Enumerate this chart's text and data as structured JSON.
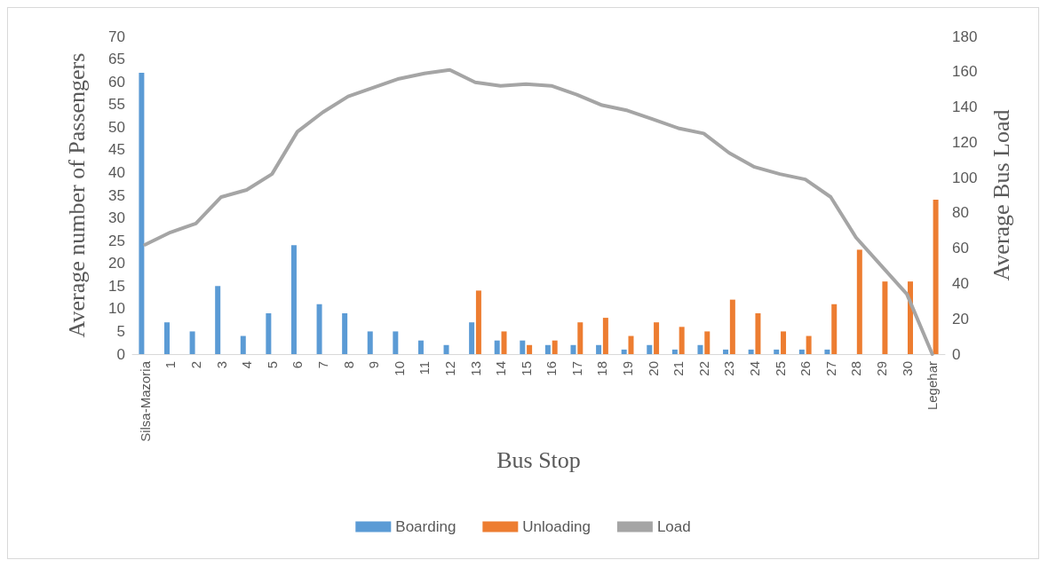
{
  "chart_data": {
    "type": "bar",
    "xlabel": "Bus Stop",
    "ylabel": "Average number of Passengers",
    "y2label": "Average Bus Load",
    "categories": [
      "Silsa-Mazoria",
      "1",
      "2",
      "3",
      "4",
      "5",
      "6",
      "7",
      "8",
      "9",
      "10",
      "11",
      "12",
      "13",
      "14",
      "15",
      "16",
      "17",
      "18",
      "19",
      "20",
      "21",
      "22",
      "23",
      "24",
      "25",
      "26",
      "27",
      "28",
      "29",
      "30",
      "Legehar"
    ],
    "series": [
      {
        "name": "Boarding",
        "color": "#5b9bd5",
        "values": [
          62,
          7,
          5,
          15,
          4,
          9,
          24,
          11,
          9,
          5,
          5,
          3,
          2,
          7,
          3,
          3,
          2,
          2,
          2,
          1,
          2,
          1,
          2,
          1,
          1,
          1,
          1,
          1,
          0,
          0,
          0,
          0
        ]
      },
      {
        "name": "Unloading",
        "color": "#ed7d31",
        "values": [
          0,
          0,
          0,
          0,
          0,
          0,
          0,
          0,
          0,
          0,
          0,
          0,
          0,
          14,
          5,
          2,
          3,
          7,
          8,
          4,
          7,
          6,
          5,
          12,
          9,
          5,
          4,
          11,
          23,
          16,
          16,
          34
        ]
      },
      {
        "name": "Load",
        "type": "line",
        "axis": "y2",
        "color": "#a5a5a5",
        "values": [
          62,
          69,
          74,
          89,
          93,
          102,
          126,
          137,
          146,
          151,
          156,
          159,
          161,
          154,
          152,
          153,
          152,
          147,
          141,
          138,
          133,
          128,
          125,
          114,
          106,
          102,
          99,
          89,
          66,
          50,
          34,
          0
        ]
      }
    ],
    "ylim": [
      0,
      70
    ],
    "yticks": [
      0,
      5,
      10,
      15,
      20,
      25,
      30,
      35,
      40,
      45,
      50,
      55,
      60,
      65,
      70
    ],
    "y2lim": [
      0,
      180
    ],
    "y2ticks": [
      0,
      20,
      40,
      60,
      80,
      100,
      120,
      140,
      160,
      180
    ],
    "grid": false,
    "legend": "bottom",
    "marker": "none",
    "line_style": "solid"
  }
}
